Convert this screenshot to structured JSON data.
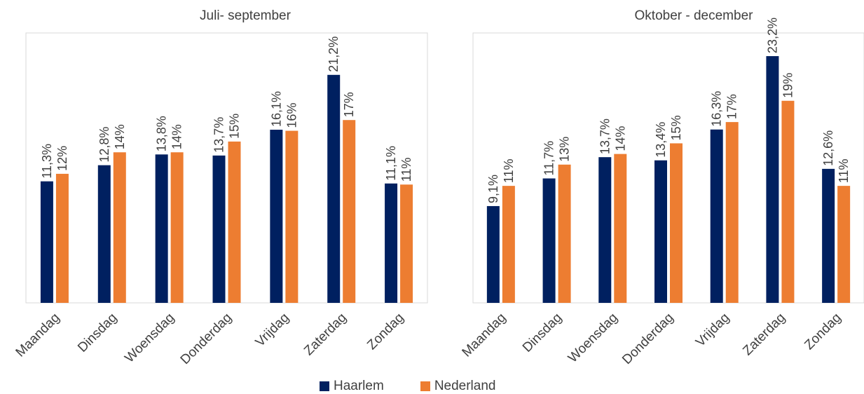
{
  "colors": {
    "haarlem": "#002060",
    "nederland": "#ED7D31",
    "axis": "#D9D9D9",
    "text": "#404040"
  },
  "legend": [
    {
      "name": "Haarlem",
      "color": "#002060"
    },
    {
      "name": "Nederland",
      "color": "#ED7D31"
    }
  ],
  "chart_data": [
    {
      "type": "bar",
      "title": "Juli- september",
      "categories": [
        "Maandag",
        "Dinsdag",
        "Woensdag",
        "Donderdag",
        "Vrijdag",
        "Zaterdag",
        "Zondag"
      ],
      "series": [
        {
          "name": "Haarlem",
          "values": [
            11.3,
            12.8,
            13.8,
            13.7,
            16.1,
            21.2,
            11.1
          ],
          "labels": [
            "11,3%",
            "12,8%",
            "13,8%",
            "13,7%",
            "16,1%",
            "21,2%",
            "11,1%"
          ]
        },
        {
          "name": "Nederland",
          "values": [
            12,
            14,
            14,
            15,
            16,
            17,
            11
          ],
          "labels": [
            "12%",
            "14%",
            "14%",
            "15%",
            "16%",
            "17%",
            "11%"
          ]
        }
      ],
      "ylim": [
        0,
        25
      ],
      "grid": false,
      "legend_position": "bottom"
    },
    {
      "type": "bar",
      "title": "Oktober - december",
      "categories": [
        "Maandag",
        "Dinsdag",
        "Woensdag",
        "Donderdag",
        "Vrijdag",
        "Zaterdag",
        "Zondag"
      ],
      "series": [
        {
          "name": "Haarlem",
          "values": [
            9.1,
            11.7,
            13.7,
            13.4,
            16.3,
            23.2,
            12.6
          ],
          "labels": [
            "9,1%",
            "11,7%",
            "13,7%",
            "13,4%",
            "16,3%",
            "23,2%",
            "12,6%"
          ]
        },
        {
          "name": "Nederland",
          "values": [
            11,
            13,
            14,
            15,
            17,
            19,
            11
          ],
          "labels": [
            "11%",
            "13%",
            "14%",
            "15%",
            "17%",
            "19%",
            "11%"
          ]
        }
      ],
      "ylim": [
        0,
        25
      ],
      "grid": false,
      "legend_position": "bottom"
    }
  ]
}
